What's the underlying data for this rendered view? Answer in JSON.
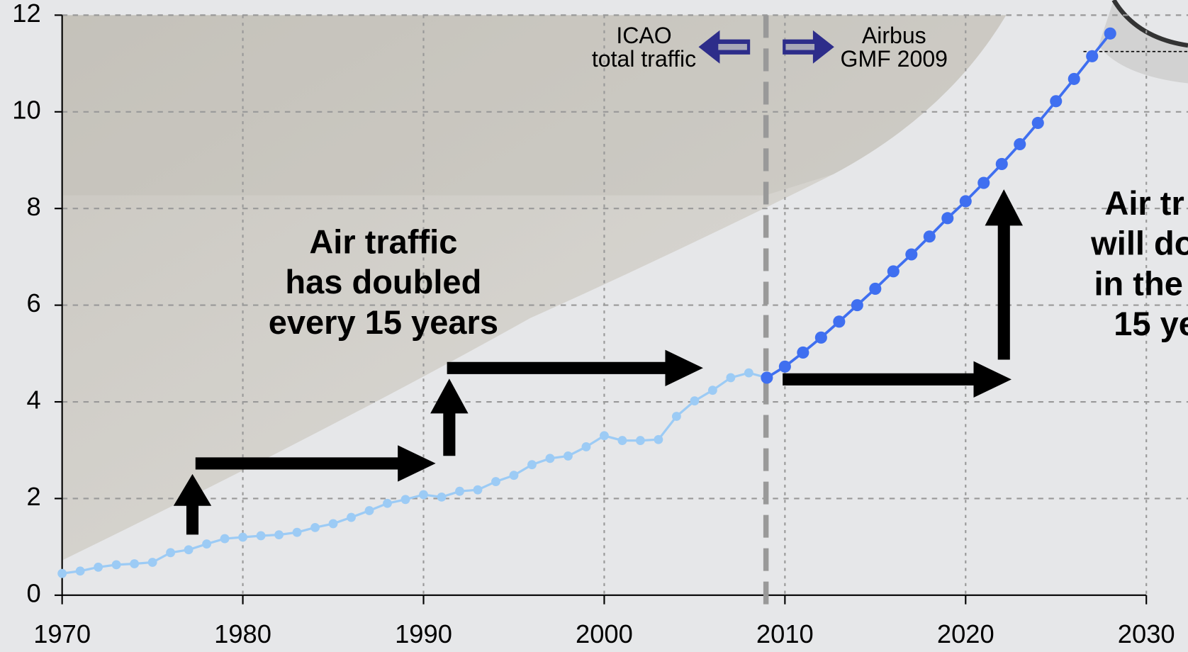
{
  "chart_data": {
    "type": "line",
    "xlim": [
      1970,
      2030
    ],
    "xticks": [
      1970,
      1980,
      1990,
      2000,
      2010,
      2020,
      2030
    ],
    "ylim": [
      0,
      12
    ],
    "yticks": [
      0,
      2,
      4,
      6,
      8,
      10,
      12
    ],
    "grid": true,
    "series": [
      {
        "name": [
          "ICAO",
          "total traffic"
        ],
        "color": "#9ccbf5",
        "x": [
          1970,
          1971,
          1972,
          1973,
          1974,
          1975,
          1976,
          1977,
          1978,
          1979,
          1980,
          1981,
          1982,
          1983,
          1984,
          1985,
          1986,
          1987,
          1988,
          1989,
          1990,
          1991,
          1992,
          1993,
          1994,
          1995,
          1996,
          1997,
          1998,
          1999,
          2000,
          2001,
          2002,
          2003,
          2004,
          2005,
          2006,
          2007,
          2008,
          2009
        ],
        "values": [
          0.45,
          0.5,
          0.58,
          0.63,
          0.65,
          0.68,
          0.88,
          0.94,
          1.06,
          1.17,
          1.2,
          1.23,
          1.25,
          1.3,
          1.4,
          1.48,
          1.61,
          1.75,
          1.9,
          1.98,
          2.08,
          2.03,
          2.15,
          2.18,
          2.35,
          2.48,
          2.7,
          2.83,
          2.88,
          3.07,
          3.3,
          3.2,
          3.2,
          3.22,
          3.7,
          4.02,
          4.24,
          4.5,
          4.6,
          4.5
        ]
      },
      {
        "name": [
          "Airbus",
          "GMF 2009"
        ],
        "color": "#3f6ff0",
        "x": [
          2009,
          2010,
          2011,
          2012,
          2013,
          2014,
          2015,
          2016,
          2017,
          2018,
          2019,
          2020,
          2021,
          2022,
          2023,
          2024,
          2025,
          2026,
          2027,
          2028
        ],
        "values": [
          4.5,
          4.73,
          5.02,
          5.33,
          5.66,
          6.0,
          6.34,
          6.7,
          7.05,
          7.42,
          7.8,
          8.15,
          8.53,
          8.92,
          9.33,
          9.77,
          10.22,
          10.68,
          11.15,
          11.62
        ]
      }
    ],
    "annotations": [
      [
        "Air traffic",
        "has doubled",
        "every 15 years"
      ],
      [
        "Air tr",
        "will do",
        "in the",
        "15 ye"
      ]
    ]
  }
}
